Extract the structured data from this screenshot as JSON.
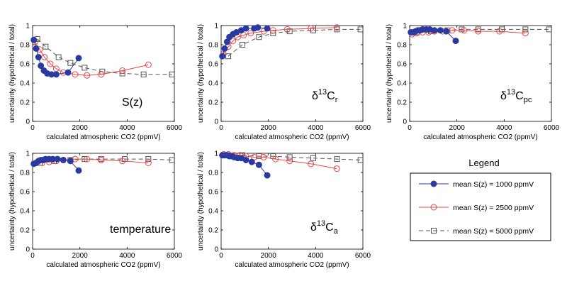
{
  "colors": {
    "s1000": "#2b3a9e",
    "s2500": "#e8474a",
    "s5000": "#555555",
    "frame": "#000000"
  },
  "legend": {
    "title": "Legend",
    "items": [
      {
        "label": "mean S(z) = 1000 ppmV",
        "series": "s1000"
      },
      {
        "label": "mean S(z) = 2500 ppmV",
        "series": "s2500"
      },
      {
        "label": "mean S(z) = 5000 ppmV",
        "series": "s5000"
      }
    ]
  },
  "chart_data": [
    {
      "type": "line",
      "panel_label": "S(z)",
      "xlabel": "calculated atmospheric CO2 (ppmV)",
      "ylabel": "uncertainty (hypothetical / total)",
      "xlim": [
        0,
        6000
      ],
      "ylim": [
        0,
        1
      ],
      "xticks": [
        "0",
        "2000",
        "4000",
        "6000"
      ],
      "yticks": [
        "0",
        "0.2",
        "0.4",
        "0.6",
        "0.8",
        "1"
      ],
      "series": [
        {
          "key": "s1000",
          "x": [
            50,
            150,
            250,
            350,
            480,
            620,
            800,
            1000,
            1500,
            1950
          ],
          "y": [
            0.85,
            0.76,
            0.67,
            0.58,
            0.53,
            0.5,
            0.49,
            0.49,
            0.51,
            0.66
          ]
        },
        {
          "key": "s2500",
          "x": [
            100,
            300,
            500,
            750,
            1000,
            1300,
            1800,
            2300,
            2900,
            3800,
            4900
          ],
          "y": [
            0.83,
            0.75,
            0.67,
            0.6,
            0.55,
            0.51,
            0.49,
            0.48,
            0.49,
            0.53,
            0.59
          ]
        },
        {
          "key": "s5000",
          "x": [
            200,
            550,
            1100,
            1600,
            2200,
            2950,
            3800,
            4700,
            5900
          ],
          "y": [
            0.86,
            0.78,
            0.67,
            0.61,
            0.56,
            0.52,
            0.5,
            0.49,
            0.49
          ]
        }
      ]
    },
    {
      "type": "line",
      "panel_label": "δ13Cr",
      "xlabel": "calculated atmospheric CO2 (ppmV)",
      "ylabel": "uncertainty (hypothetical / total)",
      "xlim": [
        0,
        6000
      ],
      "ylim": [
        0,
        1
      ],
      "xticks": [
        "0",
        "2000",
        "4000",
        "6000"
      ],
      "yticks": [
        "0",
        "0.2",
        "0.4",
        "0.6",
        "0.8",
        "1"
      ],
      "series": [
        {
          "key": "s1000",
          "x": [
            50,
            150,
            250,
            350,
            500,
            650,
            850,
            1050,
            1400,
            1550,
            1950
          ],
          "y": [
            0.68,
            0.76,
            0.83,
            0.88,
            0.91,
            0.93,
            0.95,
            0.97,
            0.97,
            0.98,
            0.97
          ]
        },
        {
          "key": "s2500",
          "x": [
            100,
            300,
            500,
            700,
            950,
            1250,
            1800,
            2200,
            2800,
            3800,
            4900
          ],
          "y": [
            0.7,
            0.78,
            0.84,
            0.88,
            0.9,
            0.92,
            0.94,
            0.95,
            0.96,
            0.97,
            0.98
          ]
        },
        {
          "key": "s5000",
          "x": [
            300,
            900,
            1600,
            2200,
            2900,
            3900,
            4900,
            5900
          ],
          "y": [
            0.68,
            0.8,
            0.88,
            0.92,
            0.94,
            0.95,
            0.96,
            0.96
          ]
        }
      ]
    },
    {
      "type": "line",
      "panel_label": "δ13Cpc",
      "xlabel": "calculated atmospheric CO2 (ppmV)",
      "ylabel": "uncertainty (hypothetical / total)",
      "xlim": [
        0,
        6000
      ],
      "ylim": [
        0,
        1
      ],
      "xticks": [
        "0",
        "2000",
        "4000",
        "6000"
      ],
      "yticks": [
        "0",
        "0.2",
        "0.4",
        "0.6",
        "0.8",
        "1"
      ],
      "series": [
        {
          "key": "s1000",
          "x": [
            50,
            150,
            250,
            350,
            450,
            550,
            700,
            850,
            1050,
            1300,
            1550,
            1950
          ],
          "y": [
            0.93,
            0.93,
            0.94,
            0.95,
            0.95,
            0.96,
            0.96,
            0.96,
            0.95,
            0.95,
            0.94,
            0.84
          ]
        },
        {
          "key": "s2500",
          "x": [
            100,
            300,
            550,
            800,
            1050,
            1400,
            1800,
            2300,
            2900,
            3800,
            4900
          ],
          "y": [
            0.91,
            0.92,
            0.93,
            0.93,
            0.94,
            0.94,
            0.95,
            0.95,
            0.94,
            0.94,
            0.92
          ]
        },
        {
          "key": "s5000",
          "x": [
            300,
            900,
            1600,
            2200,
            2900,
            3900,
            4900,
            5900
          ],
          "y": [
            0.93,
            0.94,
            0.95,
            0.96,
            0.96,
            0.96,
            0.96,
            0.96
          ]
        }
      ]
    },
    {
      "type": "line",
      "panel_label": "temperature",
      "xlabel": "calculated atmospheric CO2 (ppmV)",
      "ylabel": "uncertainty (hypothetical / total)",
      "xlim": [
        0,
        6000
      ],
      "ylim": [
        0,
        1
      ],
      "xticks": [
        "0",
        "2000",
        "4000",
        "6000"
      ],
      "yticks": [
        "0",
        "0.2",
        "0.4",
        "0.6",
        "0.8",
        "1"
      ],
      "series": [
        {
          "key": "s1000",
          "x": [
            50,
            150,
            250,
            350,
            450,
            550,
            700,
            850,
            1050,
            1300,
            1600,
            1950
          ],
          "y": [
            0.89,
            0.9,
            0.92,
            0.93,
            0.93,
            0.94,
            0.94,
            0.94,
            0.94,
            0.93,
            0.92,
            0.82
          ]
        },
        {
          "key": "s2500",
          "x": [
            150,
            400,
            700,
            1000,
            1300,
            1800,
            2300,
            2900,
            3800,
            4900
          ],
          "y": [
            0.9,
            0.9,
            0.91,
            0.92,
            0.93,
            0.94,
            0.94,
            0.93,
            0.92,
            0.9
          ]
        },
        {
          "key": "s5000",
          "x": [
            300,
            900,
            1600,
            2200,
            2900,
            3900,
            4900,
            5900
          ],
          "y": [
            0.9,
            0.92,
            0.93,
            0.94,
            0.94,
            0.94,
            0.94,
            0.93
          ]
        }
      ]
    },
    {
      "type": "line",
      "panel_label": "δ13Ca",
      "xlabel": "calculated atmospheric CO2 (ppmV)",
      "ylabel": "uncertainty (hypothetical / total)",
      "xlim": [
        0,
        6000
      ],
      "ylim": [
        0,
        1
      ],
      "xticks": [
        "0",
        "2000",
        "4000",
        "6000"
      ],
      "yticks": [
        "0",
        "0.2",
        "0.4",
        "0.6",
        "0.8",
        "1"
      ],
      "series": [
        {
          "key": "s1000",
          "x": [
            50,
            150,
            250,
            350,
            450,
            550,
            700,
            850,
            1050,
            1300,
            1600,
            1950
          ],
          "y": [
            0.98,
            0.98,
            0.98,
            0.97,
            0.97,
            0.96,
            0.95,
            0.95,
            0.93,
            0.91,
            0.88,
            0.77
          ]
        },
        {
          "key": "s2500",
          "x": [
            100,
            300,
            550,
            800,
            1050,
            1400,
            1800,
            2300,
            2900,
            3800,
            4900
          ],
          "y": [
            0.99,
            0.99,
            0.98,
            0.98,
            0.97,
            0.96,
            0.96,
            0.94,
            0.92,
            0.89,
            0.84
          ]
        },
        {
          "key": "s5000",
          "x": [
            300,
            900,
            1600,
            2200,
            2900,
            3900,
            4900,
            5900
          ],
          "y": [
            0.98,
            0.98,
            0.97,
            0.97,
            0.96,
            0.95,
            0.94,
            0.93
          ]
        }
      ]
    }
  ]
}
